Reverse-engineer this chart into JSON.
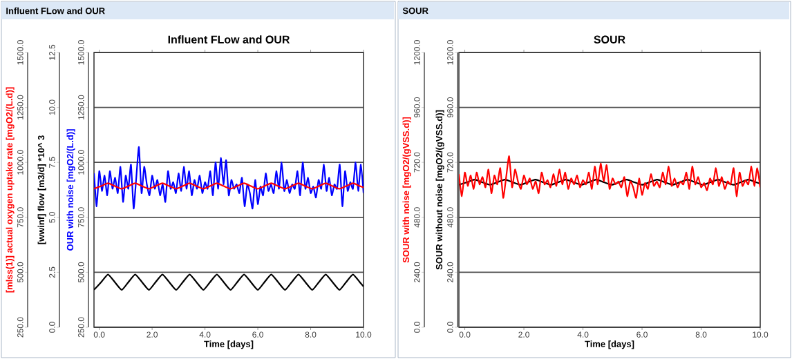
{
  "chart_data": [
    {
      "type": "line",
      "title": "Influent FLow and OUR",
      "annotations": [
        "Influent FLow and OUR"
      ],
      "xlabel": "Time [days]",
      "ylabel": "OUR with noise [mgO2/(L.d)]",
      "y2label": "[wwinf] flow [m3/d] *10^ 3",
      "y3label": "[mlss(1)] actual oxygen uptake rate [mgO2/(L.d)]",
      "xlim": [
        -0.2,
        10
      ],
      "xticks": [
        {
          "value": 0,
          "label": "0.0"
        },
        {
          "value": 2,
          "label": "2.0"
        },
        {
          "value": 4,
          "label": "4.0"
        },
        {
          "value": 6,
          "label": "6.0"
        },
        {
          "value": 8,
          "label": "8.0"
        },
        {
          "value": 10,
          "label": "10.0"
        }
      ],
      "ylim": [
        250,
        1500
      ],
      "yticks": [
        {
          "value": 250,
          "label": "250.0"
        },
        {
          "value": 500,
          "label": "500.0"
        },
        {
          "value": 750,
          "label": "750.0"
        },
        {
          "value": 1000,
          "label": "1000.0"
        },
        {
          "value": 1250,
          "label": "1250.0"
        },
        {
          "value": 1500,
          "label": "1500.0"
        }
      ],
      "y2lim": [
        0,
        12.5
      ],
      "y2ticks": [
        {
          "value": 0,
          "label": "0.0"
        },
        {
          "value": 2.5,
          "label": "2.5"
        },
        {
          "value": 5,
          "label": "5.0"
        },
        {
          "value": 7.5,
          "label": "7.5"
        },
        {
          "value": 10,
          "label": "10.0"
        },
        {
          "value": 12.5,
          "label": "12.5"
        }
      ],
      "y3lim": [
        250,
        1500
      ],
      "y3ticks": [
        {
          "value": 250,
          "label": "250.0"
        },
        {
          "value": 500,
          "label": "500.0"
        },
        {
          "value": 750,
          "label": "750.0"
        },
        {
          "value": 1000,
          "label": "1000.0"
        },
        {
          "value": 1250,
          "label": "1250.0"
        },
        {
          "value": 1500,
          "label": "1500.0"
        }
      ],
      "grid": "y",
      "series": [
        {
          "color": "#0000ff",
          "x": [
            -0.2,
            -0.1,
            0.0,
            0.1,
            0.2,
            0.3,
            0.4,
            0.5,
            0.6,
            0.7,
            0.8,
            0.9,
            1.0,
            1.1,
            1.2,
            1.3,
            1.4,
            1.5,
            1.6,
            1.7,
            1.8,
            1.9,
            2.0,
            2.1,
            2.2,
            2.3,
            2.4,
            2.5,
            2.6,
            2.7,
            2.8,
            2.9,
            3.0,
            3.1,
            3.2,
            3.3,
            3.4,
            3.5,
            3.6,
            3.7,
            3.8,
            3.9,
            4.0,
            4.1,
            4.2,
            4.3,
            4.4,
            4.5,
            4.6,
            4.7,
            4.8,
            4.9,
            5.0,
            5.1,
            5.2,
            5.3,
            5.4,
            5.5,
            5.6,
            5.7,
            5.8,
            5.9,
            6.0,
            6.1,
            6.2,
            6.3,
            6.4,
            6.5,
            6.6,
            6.7,
            6.8,
            6.9,
            7.0,
            7.1,
            7.2,
            7.3,
            7.4,
            7.5,
            7.6,
            7.7,
            7.8,
            7.9,
            8.0,
            8.1,
            8.2,
            8.3,
            8.4,
            8.5,
            8.6,
            8.7,
            8.8,
            8.9,
            9.0,
            9.1,
            9.2,
            9.3,
            9.4,
            9.5,
            9.6,
            9.7,
            9.8,
            9.9,
            10.0
          ],
          "values": [
            950,
            800,
            960,
            870,
            940,
            850,
            960,
            880,
            930,
            860,
            980,
            820,
            940,
            880,
            990,
            790,
            930,
            1070,
            860,
            980,
            900,
            850,
            940,
            880,
            920,
            850,
            900,
            820,
            960,
            880,
            910,
            860,
            950,
            870,
            980,
            880,
            960,
            850,
            920,
            880,
            940,
            860,
            910,
            880,
            960,
            850,
            1000,
            880,
            1020,
            900,
            1010,
            850,
            920,
            880,
            900,
            860,
            930,
            800,
            900,
            860,
            790,
            920,
            810,
            890,
            850,
            950,
            870,
            900,
            860,
            960,
            880,
            1000,
            870,
            920,
            860,
            900,
            880,
            960,
            850,
            1000,
            880,
            930,
            860,
            890,
            840,
            920,
            880,
            990,
            870,
            930,
            850,
            900,
            880,
            990,
            800,
            960,
            870,
            910,
            880,
            1000,
            870,
            990,
            860
          ]
        },
        {
          "color": "#ff0000",
          "axis": "y3",
          "x": [
            -0.2,
            0.07,
            0.33,
            0.59,
            0.85,
            1.1,
            1.36,
            1.62,
            1.88,
            2.13,
            2.39,
            2.65,
            2.91,
            3.16,
            3.42,
            3.68,
            3.94,
            4.19,
            4.45,
            4.71,
            4.97,
            5.22,
            5.48,
            5.74,
            6.0,
            6.25,
            6.51,
            6.77,
            7.03,
            7.28,
            7.54,
            7.8,
            8.06,
            8.31,
            8.57,
            8.83,
            9.09,
            9.34,
            9.6,
            9.86,
            10.0
          ],
          "values": [
            880,
            892,
            905,
            892,
            880,
            892,
            905,
            892,
            880,
            892,
            905,
            892,
            880,
            892,
            905,
            892,
            880,
            892,
            905,
            892,
            880,
            892,
            905,
            892,
            880,
            892,
            905,
            892,
            880,
            892,
            905,
            892,
            880,
            892,
            905,
            892,
            880,
            892,
            905,
            892,
            886
          ]
        },
        {
          "color": "#000000",
          "axis": "y2",
          "x": [
            -0.2,
            0.07,
            0.33,
            0.59,
            0.85,
            1.1,
            1.36,
            1.62,
            1.88,
            2.13,
            2.39,
            2.65,
            2.91,
            3.16,
            3.42,
            3.68,
            3.94,
            4.19,
            4.45,
            4.71,
            4.97,
            5.22,
            5.48,
            5.74,
            6.0,
            6.25,
            6.51,
            6.77,
            7.03,
            7.28,
            7.54,
            7.8,
            8.06,
            8.31,
            8.57,
            8.83,
            9.09,
            9.34,
            9.6,
            9.86,
            10.0
          ],
          "values": [
            1.7,
            2.05,
            2.4,
            2.05,
            1.7,
            2.05,
            2.4,
            2.05,
            1.7,
            2.05,
            2.4,
            2.05,
            1.7,
            2.05,
            2.4,
            2.05,
            1.7,
            2.05,
            2.4,
            2.05,
            1.7,
            2.05,
            2.4,
            2.05,
            1.7,
            2.05,
            2.4,
            2.05,
            1.7,
            2.05,
            2.4,
            2.05,
            1.7,
            2.05,
            2.4,
            2.05,
            1.7,
            2.05,
            2.4,
            2.05,
            1.85
          ]
        }
      ]
    },
    {
      "type": "line",
      "title": "SOUR",
      "annotations": [
        "SOUR"
      ],
      "xlabel": "Time [days]",
      "ylabel": "SOUR without noise [mgO2/(gVSS.d)]",
      "y2label": "SOUR with noise [mgO2/(gVSS.d)]",
      "xlim": [
        -0.2,
        10
      ],
      "xticks": [
        {
          "value": 0,
          "label": "0.0"
        },
        {
          "value": 2,
          "label": "2.0"
        },
        {
          "value": 4,
          "label": "4.0"
        },
        {
          "value": 6,
          "label": "6.0"
        },
        {
          "value": 8,
          "label": "8.0"
        },
        {
          "value": 10,
          "label": "10.0"
        }
      ],
      "ylim": [
        0,
        1200
      ],
      "yticks": [
        {
          "value": 0,
          "label": "0.0"
        },
        {
          "value": 240,
          "label": "240.0"
        },
        {
          "value": 480,
          "label": "480.0"
        },
        {
          "value": 720,
          "label": "720.0"
        },
        {
          "value": 960,
          "label": "960.0"
        },
        {
          "value": 1200,
          "label": "1200.0"
        }
      ],
      "y2lim": [
        0,
        1200
      ],
      "y2ticks": [
        {
          "value": 0,
          "label": "0.0"
        },
        {
          "value": 240,
          "label": "240.0"
        },
        {
          "value": 480,
          "label": "480.0"
        },
        {
          "value": 720,
          "label": "720.0"
        },
        {
          "value": 960,
          "label": "960.0"
        },
        {
          "value": 1200,
          "label": "1200.0"
        }
      ],
      "grid": "y",
      "series": [
        {
          "color": "#ff0000",
          "axis": "y2",
          "x": [
            -0.2,
            -0.1,
            0.0,
            0.1,
            0.2,
            0.3,
            0.4,
            0.5,
            0.6,
            0.7,
            0.8,
            0.9,
            1.0,
            1.1,
            1.2,
            1.3,
            1.4,
            1.5,
            1.6,
            1.7,
            1.8,
            1.9,
            2.0,
            2.1,
            2.2,
            2.3,
            2.4,
            2.5,
            2.6,
            2.7,
            2.8,
            2.9,
            3.0,
            3.1,
            3.2,
            3.3,
            3.4,
            3.5,
            3.6,
            3.7,
            3.8,
            3.9,
            4.0,
            4.1,
            4.2,
            4.3,
            4.4,
            4.5,
            4.6,
            4.7,
            4.8,
            4.9,
            5.0,
            5.1,
            5.2,
            5.3,
            5.4,
            5.5,
            5.6,
            5.7,
            5.8,
            5.9,
            6.0,
            6.1,
            6.2,
            6.3,
            6.4,
            6.5,
            6.6,
            6.7,
            6.8,
            6.9,
            7.0,
            7.1,
            7.2,
            7.3,
            7.4,
            7.5,
            7.6,
            7.7,
            7.8,
            7.9,
            8.0,
            8.1,
            8.2,
            8.3,
            8.4,
            8.5,
            8.6,
            8.7,
            8.8,
            8.9,
            9.0,
            9.1,
            9.2,
            9.3,
            9.4,
            9.5,
            9.6,
            9.7,
            9.8,
            9.9,
            10.0
          ],
          "values": [
            669,
            572,
            676,
            617,
            663,
            604,
            676,
            624,
            656,
            611,
            689,
            585,
            663,
            624,
            695,
            565,
            656,
            747,
            611,
            689,
            637,
            604,
            663,
            624,
            650,
            604,
            637,
            585,
            676,
            624,
            643,
            611,
            669,
            617,
            689,
            624,
            676,
            604,
            650,
            624,
            663,
            611,
            643,
            624,
            676,
            604,
            702,
            624,
            715,
            637,
            708,
            604,
            650,
            624,
            637,
            611,
            656,
            572,
            637,
            611,
            565,
            650,
            578,
            630,
            604,
            669,
            617,
            637,
            611,
            676,
            624,
            702,
            617,
            650,
            611,
            637,
            624,
            676,
            604,
            702,
            624,
            656,
            611,
            630,
            598,
            650,
            624,
            695,
            617,
            656,
            604,
            637,
            624,
            695,
            572,
            676,
            617,
            643,
            624,
            702,
            617,
            695,
            611
          ]
        },
        {
          "color": "#000000",
          "x": [
            -0.2,
            0.07,
            0.33,
            0.59,
            0.85,
            1.1,
            1.36,
            1.62,
            1.88,
            2.13,
            2.39,
            2.65,
            2.91,
            3.16,
            3.42,
            3.68,
            3.94,
            4.19,
            4.45,
            4.71,
            4.97,
            5.22,
            5.48,
            5.74,
            6.0,
            6.25,
            6.51,
            6.77,
            7.03,
            7.28,
            7.54,
            7.8,
            8.06,
            8.31,
            8.57,
            8.83,
            9.09,
            9.34,
            9.6,
            9.86,
            10.0
          ],
          "values": [
            622,
            633,
            645,
            633,
            622,
            633,
            645,
            633,
            622,
            633,
            645,
            633,
            622,
            633,
            645,
            633,
            622,
            633,
            645,
            633,
            622,
            633,
            645,
            633,
            622,
            633,
            645,
            633,
            622,
            633,
            645,
            633,
            622,
            633,
            645,
            633,
            622,
            633,
            645,
            633,
            627
          ]
        }
      ]
    }
  ]
}
